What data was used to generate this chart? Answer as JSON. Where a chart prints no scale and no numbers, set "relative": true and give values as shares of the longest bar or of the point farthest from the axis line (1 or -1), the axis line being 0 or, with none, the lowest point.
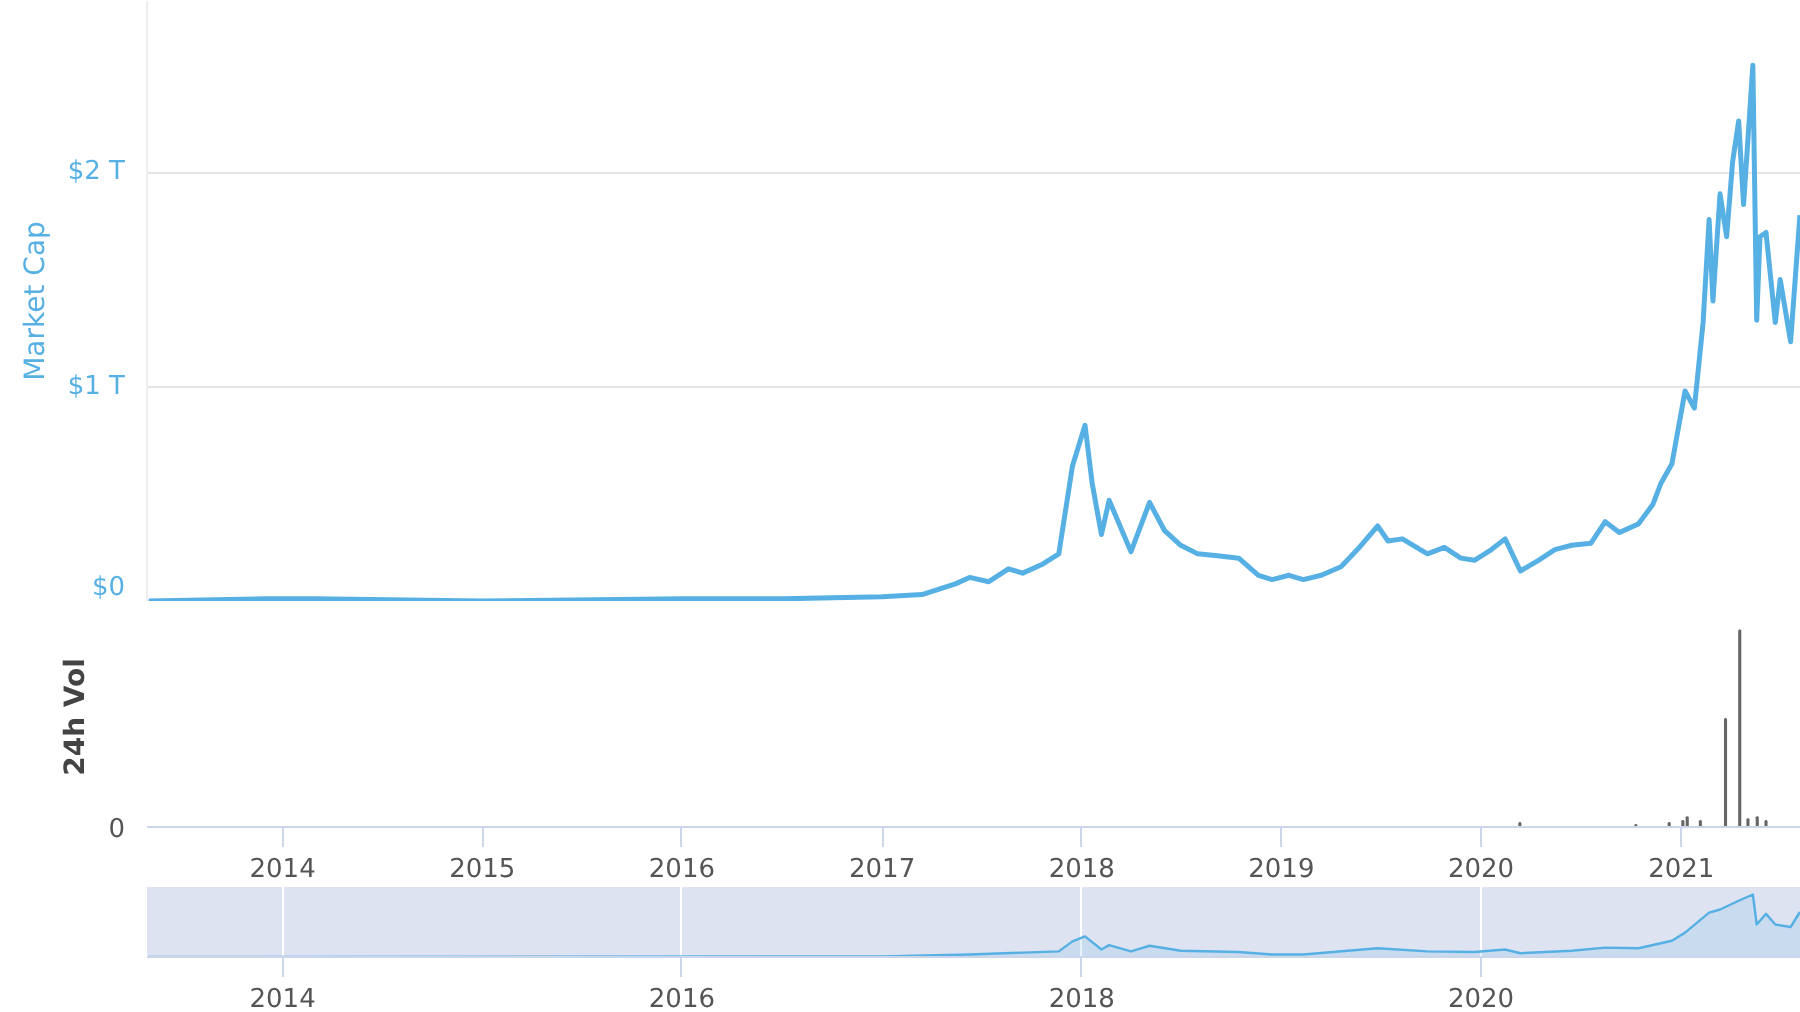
{
  "chart_data": [
    {
      "type": "line",
      "ylabel": "Market Cap",
      "grid": "y",
      "tick_labels": "y",
      "xlim": [
        "2013-04-28",
        "2021-08-08"
      ],
      "ylim": [
        0,
        2.8
      ],
      "yticks": [
        {
          "value": 0,
          "label": "$0"
        },
        {
          "value": 1,
          "label": "$1 T"
        },
        {
          "value": 2,
          "label": "$2 T"
        }
      ],
      "x": [
        "2013-05-01",
        "2013-12-01",
        "2014-03-01",
        "2015-01-01",
        "2016-01-01",
        "2016-07-01",
        "2017-01-01",
        "2017-03-15",
        "2017-05-15",
        "2017-06-10",
        "2017-07-15",
        "2017-08-20",
        "2017-09-15",
        "2017-10-20",
        "2017-11-20",
        "2017-12-15",
        "2018-01-07",
        "2018-01-20",
        "2018-02-06",
        "2018-02-20",
        "2018-04-01",
        "2018-05-05",
        "2018-06-01",
        "2018-07-01",
        "2018-08-01",
        "2018-09-10",
        "2018-10-15",
        "2018-11-20",
        "2018-12-15",
        "2019-01-15",
        "2019-02-10",
        "2019-03-15",
        "2019-04-20",
        "2019-05-20",
        "2019-06-26",
        "2019-07-15",
        "2019-08-10",
        "2019-09-25",
        "2019-10-26",
        "2019-11-25",
        "2019-12-20",
        "2020-01-20",
        "2020-02-14",
        "2020-03-13",
        "2020-04-15",
        "2020-05-15",
        "2020-06-15",
        "2020-07-20",
        "2020-08-15",
        "2020-09-10",
        "2020-10-15",
        "2020-11-10",
        "2020-11-25",
        "2020-12-15",
        "2021-01-08",
        "2021-01-25",
        "2021-02-10",
        "2021-02-21",
        "2021-02-28",
        "2021-03-13",
        "2021-03-25",
        "2021-04-05",
        "2021-04-16",
        "2021-04-25",
        "2021-05-12",
        "2021-05-19",
        "2021-05-25",
        "2021-06-05",
        "2021-06-22",
        "2021-07-01",
        "2021-07-20",
        "2021-08-06"
      ],
      "series": [
        {
          "color": "#56b0e4",
          "values": [
            0,
            0.01,
            0.01,
            0,
            0.01,
            0.01,
            0.02,
            0.03,
            0.08,
            0.11,
            0.09,
            0.15,
            0.13,
            0.17,
            0.22,
            0.63,
            0.82,
            0.55,
            0.31,
            0.47,
            0.23,
            0.46,
            0.33,
            0.26,
            0.22,
            0.21,
            0.2,
            0.12,
            0.1,
            0.12,
            0.1,
            0.12,
            0.16,
            0.24,
            0.35,
            0.28,
            0.29,
            0.22,
            0.25,
            0.2,
            0.19,
            0.24,
            0.29,
            0.14,
            0.19,
            0.24,
            0.26,
            0.27,
            0.37,
            0.32,
            0.36,
            0.45,
            0.55,
            0.64,
            0.98,
            0.9,
            1.3,
            1.78,
            1.4,
            1.9,
            1.7,
            2.05,
            2.24,
            1.85,
            2.5,
            1.31,
            1.7,
            1.72,
            1.3,
            1.5,
            1.21,
            1.8
          ]
        }
      ]
    },
    {
      "type": "bar",
      "ylabel": "24h Vol",
      "relative": true,
      "tick_labels": "x",
      "annotations": [
        "0"
      ],
      "xlim": [
        "2013-04-28",
        "2021-08-08"
      ],
      "xticks": [
        {
          "value": "2014",
          "label": "2014"
        },
        {
          "value": "2015",
          "label": "2015"
        },
        {
          "value": "2016",
          "label": "2016"
        },
        {
          "value": "2017",
          "label": "2017"
        },
        {
          "value": "2018",
          "label": "2018"
        },
        {
          "value": "2019",
          "label": "2019"
        },
        {
          "value": "2020",
          "label": "2020"
        },
        {
          "value": "2021",
          "label": "2021"
        }
      ],
      "x": [
        "2020-03-12",
        "2020-10-10",
        "2020-12-10",
        "2021-01-04",
        "2021-01-12",
        "2021-02-05",
        "2021-03-23",
        "2021-04-18",
        "2021-05-03",
        "2021-05-20",
        "2021-06-05"
      ],
      "series": [
        {
          "color": "#666666",
          "values": [
            0.02,
            0.01,
            0.02,
            0.03,
            0.05,
            0.03,
            0.55,
            1.0,
            0.04,
            0.05,
            0.03
          ]
        }
      ]
    },
    {
      "type": "area",
      "relative": true,
      "grid": "x",
      "xlim": [
        "2013-04-28",
        "2021-08-08"
      ],
      "xticks": [
        {
          "value": "2014",
          "label": "2014"
        },
        {
          "value": "2016",
          "label": "2016"
        },
        {
          "value": "2018",
          "label": "2018"
        },
        {
          "value": "2020",
          "label": "2020"
        }
      ],
      "x": [
        "2013-05-01",
        "2017-01-01",
        "2017-06-10",
        "2017-11-20",
        "2017-12-15",
        "2018-01-07",
        "2018-02-06",
        "2018-02-20",
        "2018-04-01",
        "2018-05-05",
        "2018-07-01",
        "2018-10-15",
        "2018-12-15",
        "2019-02-10",
        "2019-06-26",
        "2019-09-25",
        "2019-12-20",
        "2020-02-14",
        "2020-03-13",
        "2020-06-15",
        "2020-08-15",
        "2020-10-15",
        "2020-12-15",
        "2021-01-08",
        "2021-02-21",
        "2021-03-13",
        "2021-04-16",
        "2021-05-12",
        "2021-05-19",
        "2021-06-05",
        "2021-06-22",
        "2021-07-20",
        "2021-08-06"
      ],
      "series": [
        {
          "color": "#56b0e4",
          "values": [
            0,
            0.01,
            0.04,
            0.09,
            0.25,
            0.33,
            0.12,
            0.19,
            0.09,
            0.18,
            0.1,
            0.08,
            0.04,
            0.04,
            0.14,
            0.09,
            0.08,
            0.12,
            0.06,
            0.1,
            0.15,
            0.14,
            0.26,
            0.39,
            0.71,
            0.76,
            0.9,
            1.0,
            0.52,
            0.69,
            0.52,
            0.48,
            0.72
          ]
        }
      ]
    }
  ]
}
